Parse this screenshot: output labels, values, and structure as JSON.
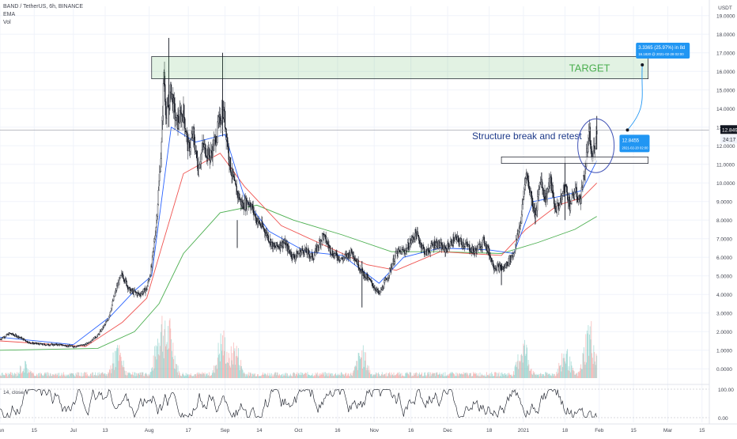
{
  "header": {
    "symbol": "BAND / TetherUS, 6h, BINANCE",
    "indicator_1": "EMA",
    "indicator_2": "Vol",
    "oscillator_label": "14, close"
  },
  "chart_data": {
    "type": "candlestick",
    "currency_label": "USDT",
    "y_ticks": [
      "19.0000",
      "18.0000",
      "17.0000",
      "16.0000",
      "15.0000",
      "14.0000",
      "13.0000",
      "12.0000",
      "11.0000",
      "10.0000",
      "9.0000",
      "8.0000",
      "7.0000",
      "6.0000",
      "5.0000",
      "4.0000",
      "3.0000",
      "2.0000",
      "1.0000",
      "0.0000"
    ],
    "y_tick_values": [
      19,
      18,
      17,
      16,
      15,
      14,
      13,
      12,
      11,
      10,
      9,
      8,
      7,
      6,
      5,
      4,
      3,
      2,
      1,
      0
    ],
    "ylim": [
      -0.5,
      19.5
    ],
    "x_ticks": [
      "Jun",
      "15",
      "Jul",
      "13",
      "Aug",
      "17",
      "Sep",
      "14",
      "Oct",
      "16",
      "Nov",
      "16",
      "Dec",
      "18",
      "2021",
      "18",
      "Feb",
      "15",
      "Mar",
      "15"
    ],
    "x_tick_days": [
      0,
      14,
      30,
      43,
      61,
      77,
      92,
      106,
      122,
      138,
      153,
      168,
      183,
      200,
      214,
      231,
      245,
      259,
      273,
      287
    ],
    "x_range_days": [
      0,
      290
    ],
    "last_price": "12.8497",
    "countdown": "24:17",
    "last_price_value": 12.8497,
    "osc_ticks": [
      "100.00",
      "0.00"
    ],
    "price_path": [
      {
        "x": 0,
        "y": 1.6
      },
      {
        "x": 4,
        "y": 1.9
      },
      {
        "x": 8,
        "y": 1.7
      },
      {
        "x": 12,
        "y": 1.4
      },
      {
        "x": 18,
        "y": 1.3
      },
      {
        "x": 24,
        "y": 1.3
      },
      {
        "x": 30,
        "y": 1.2
      },
      {
        "x": 35,
        "y": 1.3
      },
      {
        "x": 40,
        "y": 1.8
      },
      {
        "x": 44,
        "y": 2.6
      },
      {
        "x": 48,
        "y": 4.5
      },
      {
        "x": 50,
        "y": 5.1
      },
      {
        "x": 53,
        "y": 4.2
      },
      {
        "x": 57,
        "y": 4.0
      },
      {
        "x": 60,
        "y": 4.3
      },
      {
        "x": 62,
        "y": 5.5
      },
      {
        "x": 64,
        "y": 8.0
      },
      {
        "x": 66,
        "y": 12.0
      },
      {
        "x": 67,
        "y": 16.0
      },
      {
        "x": 68,
        "y": 13.5
      },
      {
        "x": 70,
        "y": 15.0
      },
      {
        "x": 72,
        "y": 13.2
      },
      {
        "x": 75,
        "y": 13.8
      },
      {
        "x": 77,
        "y": 11.8
      },
      {
        "x": 79,
        "y": 12.6
      },
      {
        "x": 81,
        "y": 10.8
      },
      {
        "x": 83,
        "y": 12.0
      },
      {
        "x": 86,
        "y": 11.4
      },
      {
        "x": 88,
        "y": 12.3
      },
      {
        "x": 91,
        "y": 14.0
      },
      {
        "x": 92,
        "y": 13.3
      },
      {
        "x": 94,
        "y": 11.0
      },
      {
        "x": 96,
        "y": 9.8
      },
      {
        "x": 99,
        "y": 8.8
      },
      {
        "x": 102,
        "y": 9.0
      },
      {
        "x": 105,
        "y": 8.0
      },
      {
        "x": 108,
        "y": 7.5
      },
      {
        "x": 112,
        "y": 6.5
      },
      {
        "x": 116,
        "y": 6.8
      },
      {
        "x": 120,
        "y": 6.0
      },
      {
        "x": 124,
        "y": 6.4
      },
      {
        "x": 128,
        "y": 6.0
      },
      {
        "x": 132,
        "y": 7.2
      },
      {
        "x": 136,
        "y": 6.2
      },
      {
        "x": 140,
        "y": 5.9
      },
      {
        "x": 144,
        "y": 6.3
      },
      {
        "x": 148,
        "y": 5.2
      },
      {
        "x": 152,
        "y": 4.6
      },
      {
        "x": 155,
        "y": 4.0
      },
      {
        "x": 158,
        "y": 4.8
      },
      {
        "x": 162,
        "y": 6.2
      },
      {
        "x": 166,
        "y": 6.4
      },
      {
        "x": 170,
        "y": 7.3
      },
      {
        "x": 174,
        "y": 6.2
      },
      {
        "x": 178,
        "y": 6.8
      },
      {
        "x": 182,
        "y": 6.4
      },
      {
        "x": 186,
        "y": 7.0
      },
      {
        "x": 190,
        "y": 6.7
      },
      {
        "x": 194,
        "y": 6.3
      },
      {
        "x": 198,
        "y": 6.9
      },
      {
        "x": 202,
        "y": 5.5
      },
      {
        "x": 206,
        "y": 5.4
      },
      {
        "x": 210,
        "y": 6.2
      },
      {
        "x": 213,
        "y": 8.0
      },
      {
        "x": 215,
        "y": 10.6
      },
      {
        "x": 217,
        "y": 9.4
      },
      {
        "x": 219,
        "y": 8.2
      },
      {
        "x": 221,
        "y": 10.3
      },
      {
        "x": 223,
        "y": 9.1
      },
      {
        "x": 225,
        "y": 10.2
      },
      {
        "x": 227,
        "y": 8.6
      },
      {
        "x": 229,
        "y": 8.9
      },
      {
        "x": 231,
        "y": 9.9
      },
      {
        "x": 233,
        "y": 8.8
      },
      {
        "x": 235,
        "y": 9.6
      },
      {
        "x": 237,
        "y": 9.0
      },
      {
        "x": 239,
        "y": 10.5
      },
      {
        "x": 240,
        "y": 11.7
      },
      {
        "x": 241,
        "y": 12.6
      },
      {
        "x": 242,
        "y": 11.2
      },
      {
        "x": 243,
        "y": 12.0
      },
      {
        "x": 244,
        "y": 12.85
      }
    ],
    "spikes": [
      {
        "x": 69,
        "high": 17.8,
        "low": 13.0
      },
      {
        "x": 91,
        "high": 17.0,
        "low": 12.5
      },
      {
        "x": 97,
        "high": 8.0,
        "low": 6.5
      },
      {
        "x": 148,
        "high": 5.8,
        "low": 3.3
      },
      {
        "x": 205,
        "high": 5.6,
        "low": 4.5
      },
      {
        "x": 231,
        "high": 11.4,
        "low": 8.0
      },
      {
        "x": 244,
        "high": 13.6,
        "low": 11.8
      }
    ],
    "ema_fast": [
      {
        "x": 0,
        "y": 1.7
      },
      {
        "x": 30,
        "y": 1.3
      },
      {
        "x": 45,
        "y": 2.8
      },
      {
        "x": 55,
        "y": 4.2
      },
      {
        "x": 62,
        "y": 5.0
      },
      {
        "x": 66,
        "y": 9.0
      },
      {
        "x": 70,
        "y": 13.0
      },
      {
        "x": 80,
        "y": 12.2
      },
      {
        "x": 92,
        "y": 12.6
      },
      {
        "x": 100,
        "y": 9.2
      },
      {
        "x": 110,
        "y": 7.4
      },
      {
        "x": 125,
        "y": 6.3
      },
      {
        "x": 140,
        "y": 6.1
      },
      {
        "x": 155,
        "y": 4.6
      },
      {
        "x": 165,
        "y": 6.0
      },
      {
        "x": 180,
        "y": 6.5
      },
      {
        "x": 200,
        "y": 6.4
      },
      {
        "x": 210,
        "y": 6.2
      },
      {
        "x": 218,
        "y": 9.0
      },
      {
        "x": 230,
        "y": 9.3
      },
      {
        "x": 238,
        "y": 9.6
      },
      {
        "x": 244,
        "y": 11.2
      }
    ],
    "ema_mid": [
      {
        "x": 0,
        "y": 1.5
      },
      {
        "x": 35,
        "y": 1.2
      },
      {
        "x": 50,
        "y": 2.5
      },
      {
        "x": 60,
        "y": 3.8
      },
      {
        "x": 66,
        "y": 6.5
      },
      {
        "x": 75,
        "y": 10.5
      },
      {
        "x": 90,
        "y": 11.6
      },
      {
        "x": 100,
        "y": 9.8
      },
      {
        "x": 115,
        "y": 7.7
      },
      {
        "x": 135,
        "y": 6.5
      },
      {
        "x": 150,
        "y": 5.6
      },
      {
        "x": 162,
        "y": 5.3
      },
      {
        "x": 180,
        "y": 6.3
      },
      {
        "x": 205,
        "y": 6.1
      },
      {
        "x": 215,
        "y": 7.5
      },
      {
        "x": 228,
        "y": 8.8
      },
      {
        "x": 238,
        "y": 9.2
      },
      {
        "x": 244,
        "y": 10.0
      }
    ],
    "ema_slow": [
      {
        "x": 0,
        "y": 1.0
      },
      {
        "x": 40,
        "y": 1.1
      },
      {
        "x": 55,
        "y": 2.0
      },
      {
        "x": 65,
        "y": 3.5
      },
      {
        "x": 75,
        "y": 6.2
      },
      {
        "x": 90,
        "y": 8.4
      },
      {
        "x": 105,
        "y": 8.8
      },
      {
        "x": 120,
        "y": 8.0
      },
      {
        "x": 140,
        "y": 7.2
      },
      {
        "x": 160,
        "y": 6.3
      },
      {
        "x": 180,
        "y": 6.3
      },
      {
        "x": 205,
        "y": 6.2
      },
      {
        "x": 220,
        "y": 6.8
      },
      {
        "x": 235,
        "y": 7.5
      },
      {
        "x": 244,
        "y": 8.2
      }
    ],
    "volume_peaks": [
      {
        "x": 10,
        "v": 0.25
      },
      {
        "x": 48,
        "v": 0.5
      },
      {
        "x": 66,
        "v": 1.0
      },
      {
        "x": 69,
        "v": 0.85
      },
      {
        "x": 91,
        "v": 0.7
      },
      {
        "x": 96,
        "v": 0.55
      },
      {
        "x": 148,
        "v": 0.45
      },
      {
        "x": 214,
        "v": 0.6
      },
      {
        "x": 231,
        "v": 0.45
      },
      {
        "x": 241,
        "v": 0.85
      }
    ],
    "target_zone": {
      "label": "TARGET",
      "x0": 62,
      "x1": 265,
      "top": 16.8,
      "bottom": 15.6
    },
    "structure_zone": {
      "x0": 205,
      "x1": 265,
      "top": 11.4,
      "bottom": 11.05
    },
    "structure_label": "Structure break and retest",
    "projection": {
      "label_main": "3.3365 (25.97%) in 8d",
      "label_sub": "16.1820 @ 2021-02-28 02:00",
      "start_label_main": "12.8455",
      "start_label_sub": "2021-02-20 02:00",
      "x0": 252,
      "y0": 12.8455,
      "x1": 260,
      "y1": 16.182
    },
    "highlight_circle": {
      "x": 243,
      "y": 12.0
    }
  }
}
